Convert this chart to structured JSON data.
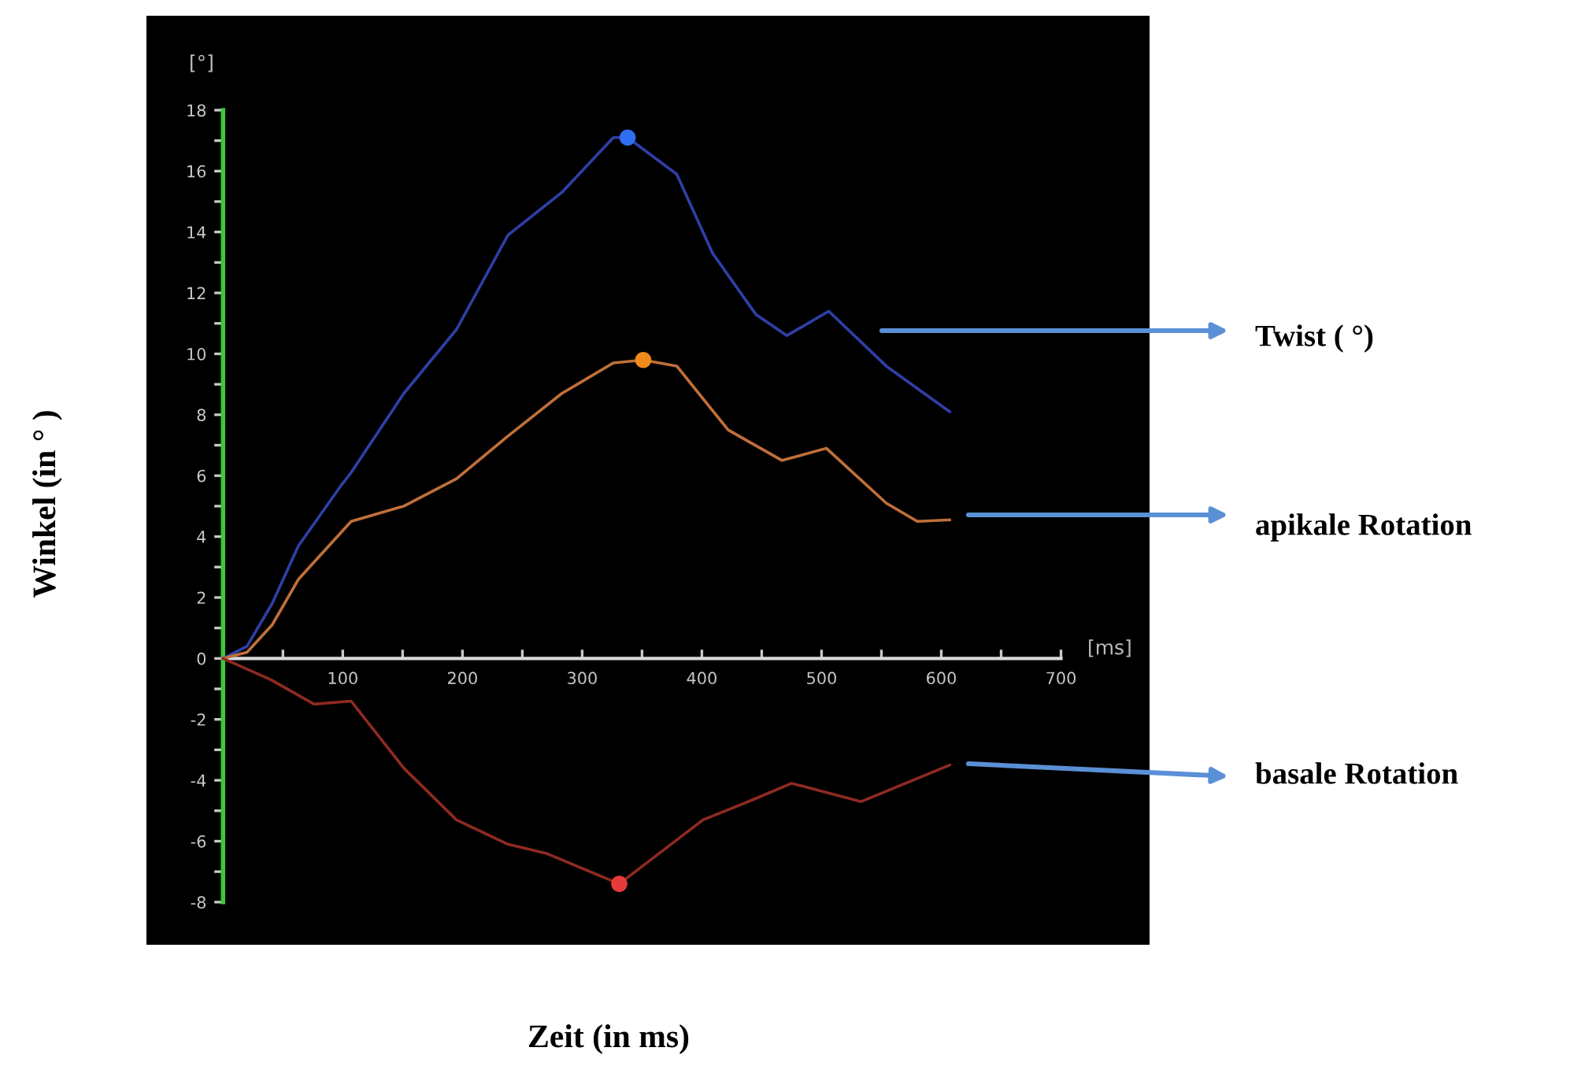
{
  "chart_data": {
    "type": "line",
    "xlabel": "Zeit (in ms)",
    "ylabel": "Winkel (in ° )",
    "annotations": [
      "[°]",
      "[ms]"
    ],
    "xlim": [
      -64,
      774
    ],
    "ylim": [
      -9.4,
      21.1
    ],
    "xticks": [
      {
        "value": 50,
        "label": null
      },
      100,
      {
        "value": 150,
        "label": null
      },
      200,
      {
        "value": 250,
        "label": null
      },
      300,
      {
        "value": 350,
        "label": null
      },
      400,
      {
        "value": 450,
        "label": null
      },
      500,
      {
        "value": 550,
        "label": null
      },
      600,
      {
        "value": 650,
        "label": null
      },
      700
    ],
    "yticks": [
      -8,
      {
        "value": -7,
        "label": null
      },
      -6,
      {
        "value": -5,
        "label": null
      },
      -4,
      {
        "value": -3,
        "label": null
      },
      -2,
      {
        "value": -1,
        "label": null
      },
      0,
      {
        "value": 1,
        "label": null
      },
      2,
      {
        "value": 3,
        "label": null
      },
      4,
      {
        "value": 5,
        "label": null
      },
      6,
      {
        "value": 7,
        "label": null
      },
      8,
      {
        "value": 9,
        "label": null
      },
      10,
      {
        "value": 11,
        "label": null
      },
      12,
      {
        "value": 13,
        "label": null
      },
      14,
      {
        "value": 15,
        "label": null
      },
      16,
      {
        "value": 17,
        "label": null
      },
      18
    ],
    "grid": false,
    "legend": false,
    "line_style": "solid",
    "marker": "none",
    "series": [
      {
        "name": "Twist ( °)",
        "color": "#2f3fa6",
        "x": [
          0,
          20,
          41,
          63,
          99,
          107,
          151,
          195,
          238,
          283,
          326,
          338,
          379,
          409,
          445,
          471,
          506,
          554,
          607
        ],
        "values": [
          0,
          0.4,
          1.8,
          3.7,
          5.7,
          6.1,
          8.7,
          10.8,
          13.9,
          15.3,
          17.1,
          17.1,
          15.9,
          13.3,
          11.3,
          10.6,
          11.4,
          9.6,
          8.1
        ]
      },
      {
        "name": "apikale Rotation",
        "color": "#c0703a",
        "x": [
          0,
          20,
          41,
          63,
          107,
          151,
          195,
          238,
          283,
          326,
          351,
          379,
          422,
          467,
          504,
          554,
          580,
          607
        ],
        "values": [
          0,
          0.2,
          1.1,
          2.6,
          4.5,
          5.0,
          5.9,
          7.3,
          8.7,
          9.7,
          9.8,
          9.6,
          7.5,
          6.5,
          6.9,
          5.1,
          4.5,
          4.55
        ]
      },
      {
        "name": "basale Rotation",
        "color": "#8e2a22",
        "x": [
          0,
          40,
          76,
          107,
          151,
          195,
          238,
          270,
          331,
          401,
          445,
          475,
          533,
          607
        ],
        "values": [
          0,
          -0.7,
          -1.5,
          -1.4,
          -3.6,
          -5.3,
          -6.1,
          -6.4,
          -7.4,
          -5.3,
          -4.6,
          -4.1,
          -4.7,
          -3.5
        ]
      },
      {
        "type": "scatter",
        "marker": "circle",
        "color": "#2f6ef0",
        "x": [
          338
        ],
        "values": [
          17.1
        ]
      },
      {
        "type": "scatter",
        "marker": "circle",
        "color": "#f08a1a",
        "x": [
          351
        ],
        "values": [
          9.8
        ]
      },
      {
        "type": "scatter",
        "marker": "circle",
        "color": "#e83a3a",
        "x": [
          331
        ],
        "values": [
          -7.4
        ]
      }
    ]
  }
}
